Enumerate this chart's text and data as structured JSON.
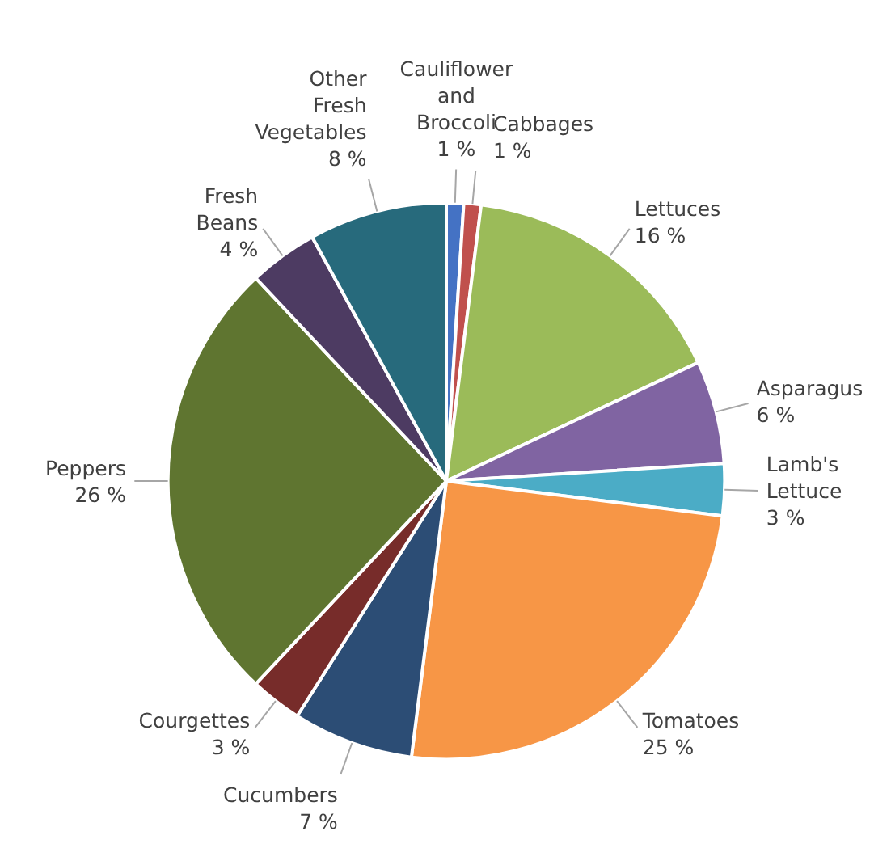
{
  "chart_data": {
    "type": "pie",
    "categories": [
      "Cauliflower and Broccoli",
      "Cabbages",
      "Lettuces",
      "Asparagus",
      "Lamb's Lettuce",
      "Tomatoes",
      "Cucumbers",
      "Courgettes",
      "Peppers",
      "Fresh Beans",
      "Other Fresh Vegetables"
    ],
    "values": [
      1,
      1,
      16,
      6,
      3,
      25,
      7,
      3,
      26,
      4,
      8
    ],
    "colors": [
      "#4472c4",
      "#c0504d",
      "#9bbb59",
      "#8064a2",
      "#4bacc6",
      "#f79646",
      "#2c4d75",
      "#772c2a",
      "#5f7530",
      "#4d3b62",
      "#276a7c"
    ],
    "value_labels": [
      "1 %",
      "1 %",
      "16 %",
      "6 %",
      "3 %",
      "25 %",
      "7 %",
      "3 %",
      "26 %",
      "4 %",
      "8 %"
    ],
    "legend": false
  }
}
